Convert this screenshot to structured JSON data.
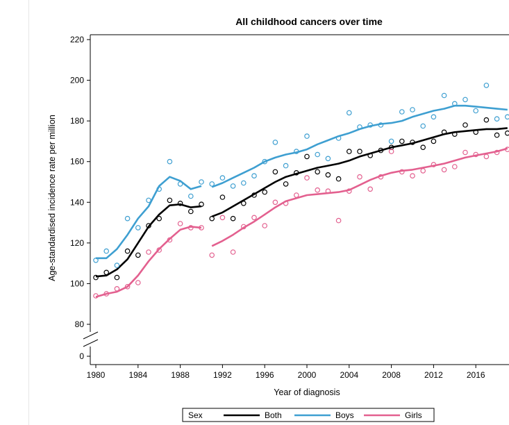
{
  "chart_data": {
    "type": "line",
    "title": "All childhood cancers over time",
    "xlabel": "Year of diagnosis",
    "ylabel": "Age-standardised incidence rate per million",
    "x_ticks": [
      1980,
      1984,
      1988,
      1992,
      1996,
      2000,
      2004,
      2008,
      2012,
      2016
    ],
    "y_ticks": [
      0,
      80,
      100,
      120,
      140,
      160,
      180,
      200,
      220
    ],
    "ylim": [
      0,
      220
    ],
    "y_axis_break": [
      0,
      80
    ],
    "xlim": [
      1979.5,
      2019.5
    ],
    "grid": false,
    "legend": {
      "title": "Sex",
      "placement": "bottom",
      "entries": [
        "Both",
        "Boys",
        "Girls"
      ]
    },
    "colors": {
      "Both": "#000000",
      "Boys": "#3e9fd1",
      "Girls": "#e3608f"
    },
    "series": [
      {
        "name": "Both",
        "observed": [
          [
            1980,
            103
          ],
          [
            1981,
            105.5
          ],
          [
            1982,
            103
          ],
          [
            1983,
            116
          ],
          [
            1984,
            114
          ],
          [
            1985,
            128.5
          ],
          [
            1986,
            132
          ],
          [
            1987,
            141
          ],
          [
            1988,
            139.5
          ],
          [
            1989,
            135.5
          ],
          [
            1990,
            139
          ],
          [
            1991,
            132
          ],
          [
            1992,
            142.5
          ],
          [
            1993,
            132
          ],
          [
            1994,
            139.5
          ],
          [
            1995,
            143.5
          ],
          [
            1996,
            145
          ],
          [
            1997,
            155
          ],
          [
            1998,
            149
          ],
          [
            1999,
            154.5
          ],
          [
            2000,
            162.5
          ],
          [
            2001,
            155
          ],
          [
            2002,
            153.5
          ],
          [
            2003,
            151.5
          ],
          [
            2004,
            165
          ],
          [
            2005,
            165
          ],
          [
            2006,
            163
          ],
          [
            2007,
            165.5
          ],
          [
            2008,
            167
          ],
          [
            2009,
            170
          ],
          [
            2010,
            169.5
          ],
          [
            2011,
            167
          ],
          [
            2012,
            170
          ],
          [
            2013,
            174.5
          ],
          [
            2014,
            173.5
          ],
          [
            2015,
            178
          ],
          [
            2016,
            174.5
          ],
          [
            2017,
            180.5
          ],
          [
            2018,
            173
          ],
          [
            2019,
            174
          ]
        ],
        "trend": [
          [
            1980,
            103.5
          ],
          [
            1981,
            104
          ],
          [
            1982,
            107
          ],
          [
            1983,
            112
          ],
          [
            1984,
            120
          ],
          [
            1985,
            128
          ],
          [
            1986,
            134
          ],
          [
            1987,
            138.5
          ],
          [
            1988,
            139
          ],
          [
            1989,
            137.5
          ],
          [
            1990,
            138
          ],
          [
            1991,
            133
          ],
          [
            1992,
            135
          ],
          [
            1993,
            138
          ],
          [
            1994,
            141
          ],
          [
            1995,
            144
          ],
          [
            1996,
            147
          ],
          [
            1997,
            150
          ],
          [
            1998,
            152.5
          ],
          [
            1999,
            154
          ],
          [
            2000,
            155.5
          ],
          [
            2001,
            157
          ],
          [
            2002,
            158
          ],
          [
            2003,
            159
          ],
          [
            2004,
            160.5
          ],
          [
            2005,
            162.5
          ],
          [
            2006,
            164
          ],
          [
            2007,
            165.5
          ],
          [
            2008,
            167
          ],
          [
            2009,
            168
          ],
          [
            2010,
            169
          ],
          [
            2011,
            170.5
          ],
          [
            2012,
            172
          ],
          [
            2013,
            173.5
          ],
          [
            2014,
            174.5
          ],
          [
            2015,
            175
          ],
          [
            2016,
            175.5
          ],
          [
            2017,
            176
          ],
          [
            2018,
            176
          ],
          [
            2019,
            176.5
          ]
        ]
      },
      {
        "name": "Boys",
        "observed": [
          [
            1980,
            111.5
          ],
          [
            1981,
            116
          ],
          [
            1982,
            109
          ],
          [
            1983,
            132
          ],
          [
            1984,
            127.5
          ],
          [
            1985,
            141
          ],
          [
            1986,
            146.5
          ],
          [
            1987,
            160
          ],
          [
            1988,
            149
          ],
          [
            1989,
            143
          ],
          [
            1990,
            150
          ],
          [
            1991,
            149
          ],
          [
            1992,
            152
          ],
          [
            1993,
            148
          ],
          [
            1994,
            149.5
          ],
          [
            1995,
            153
          ],
          [
            1996,
            160
          ],
          [
            1997,
            169.5
          ],
          [
            1998,
            158
          ],
          [
            1999,
            165
          ],
          [
            2000,
            172.5
          ],
          [
            2001,
            163.5
          ],
          [
            2002,
            161.5
          ],
          [
            2003,
            171.5
          ],
          [
            2004,
            184
          ],
          [
            2005,
            177
          ],
          [
            2006,
            178
          ],
          [
            2007,
            178
          ],
          [
            2008,
            170
          ],
          [
            2009,
            184.5
          ],
          [
            2010,
            185.5
          ],
          [
            2011,
            177.5
          ],
          [
            2012,
            182
          ],
          [
            2013,
            192.5
          ],
          [
            2014,
            188.5
          ],
          [
            2015,
            190.5
          ],
          [
            2016,
            185
          ],
          [
            2017,
            197.5
          ],
          [
            2018,
            181
          ],
          [
            2019,
            182
          ]
        ],
        "trend": [
          [
            1980,
            112.5
          ],
          [
            1981,
            112.5
          ],
          [
            1982,
            117
          ],
          [
            1983,
            124
          ],
          [
            1984,
            132
          ],
          [
            1985,
            138
          ],
          [
            1986,
            148
          ],
          [
            1987,
            152.5
          ],
          [
            1988,
            150.5
          ],
          [
            1989,
            146.5
          ],
          [
            1990,
            148
          ],
          [
            1991,
            147.5
          ],
          [
            1992,
            149.5
          ],
          [
            1993,
            152
          ],
          [
            1994,
            154.5
          ],
          [
            1995,
            157
          ],
          [
            1996,
            160
          ],
          [
            1997,
            162
          ],
          [
            1998,
            163.5
          ],
          [
            1999,
            164.5
          ],
          [
            2000,
            166
          ],
          [
            2001,
            168.5
          ],
          [
            2002,
            170.5
          ],
          [
            2003,
            172.5
          ],
          [
            2004,
            174
          ],
          [
            2005,
            176
          ],
          [
            2006,
            177.5
          ],
          [
            2007,
            178.5
          ],
          [
            2008,
            179
          ],
          [
            2009,
            180
          ],
          [
            2010,
            182
          ],
          [
            2011,
            183.5
          ],
          [
            2012,
            185
          ],
          [
            2013,
            186
          ],
          [
            2014,
            187.5
          ],
          [
            2015,
            187.5
          ],
          [
            2016,
            187
          ],
          [
            2017,
            186.5
          ],
          [
            2018,
            186
          ],
          [
            2019,
            185.5
          ]
        ]
      },
      {
        "name": "Girls",
        "observed": [
          [
            1980,
            94
          ],
          [
            1981,
            95
          ],
          [
            1982,
            97.5
          ],
          [
            1983,
            98.5
          ],
          [
            1984,
            100.5
          ],
          [
            1985,
            115.5
          ],
          [
            1986,
            116.5
          ],
          [
            1987,
            121.5
          ],
          [
            1988,
            129.5
          ],
          [
            1989,
            127.5
          ],
          [
            1990,
            127.5
          ],
          [
            1991,
            114
          ],
          [
            1992,
            132.5
          ],
          [
            1993,
            115.5
          ],
          [
            1994,
            128
          ],
          [
            1995,
            132.5
          ],
          [
            1996,
            128.5
          ],
          [
            1997,
            140
          ],
          [
            1998,
            139.5
          ],
          [
            1999,
            143.5
          ],
          [
            2000,
            152
          ],
          [
            2001,
            146
          ],
          [
            2002,
            145.5
          ],
          [
            2003,
            131
          ],
          [
            2004,
            145.5
          ],
          [
            2005,
            152.5
          ],
          [
            2006,
            146.5
          ],
          [
            2007,
            152.5
          ],
          [
            2008,
            165
          ],
          [
            2009,
            155
          ],
          [
            2010,
            153
          ],
          [
            2011,
            155.5
          ],
          [
            2012,
            158.5
          ],
          [
            2013,
            156
          ],
          [
            2014,
            157.5
          ],
          [
            2015,
            164.5
          ],
          [
            2016,
            163.5
          ],
          [
            2017,
            162.5
          ],
          [
            2018,
            164.5
          ],
          [
            2019,
            166
          ]
        ],
        "trend": [
          [
            1980,
            93.5
          ],
          [
            1981,
            95
          ],
          [
            1982,
            96
          ],
          [
            1983,
            98.5
          ],
          [
            1984,
            104
          ],
          [
            1985,
            111
          ],
          [
            1986,
            117
          ],
          [
            1987,
            122
          ],
          [
            1988,
            126.5
          ],
          [
            1989,
            128
          ],
          [
            1990,
            127.5
          ],
          [
            1991,
            118.5
          ],
          [
            1992,
            121
          ],
          [
            1993,
            124
          ],
          [
            1994,
            127.5
          ],
          [
            1995,
            130.5
          ],
          [
            1996,
            134
          ],
          [
            1997,
            137.5
          ],
          [
            1998,
            140.5
          ],
          [
            1999,
            142
          ],
          [
            2000,
            143.5
          ],
          [
            2001,
            144
          ],
          [
            2002,
            144.5
          ],
          [
            2003,
            145
          ],
          [
            2004,
            146
          ],
          [
            2005,
            148.5
          ],
          [
            2006,
            151
          ],
          [
            2007,
            153
          ],
          [
            2008,
            154.5
          ],
          [
            2009,
            155.5
          ],
          [
            2010,
            156
          ],
          [
            2011,
            157
          ],
          [
            2012,
            158
          ],
          [
            2013,
            159
          ],
          [
            2014,
            160.5
          ],
          [
            2015,
            162
          ],
          [
            2016,
            163
          ],
          [
            2017,
            164
          ],
          [
            2018,
            165
          ],
          [
            2019,
            166.5
          ]
        ]
      }
    ]
  }
}
